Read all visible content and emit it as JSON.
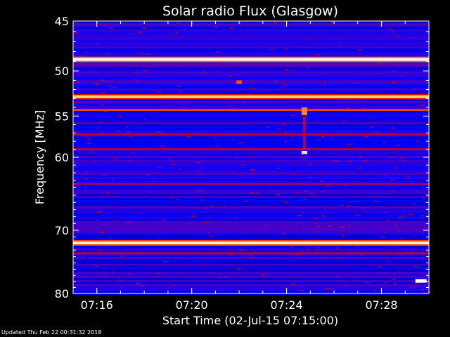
{
  "chart_data": {
    "type": "heatmap",
    "title": "Solar radio Flux (Glasgow)",
    "xlabel": "Start Time (02-Jul-15 07:15:00)",
    "ylabel": "Frequency [MHz]",
    "start_time": "07:15:00",
    "xlim": [
      "07:15:00",
      "07:30:00"
    ],
    "ylim": [
      45,
      80
    ],
    "x_ticks": [
      "07:16",
      "07:20",
      "07:24",
      "07:28"
    ],
    "y_ticks": [
      45,
      50,
      55,
      60,
      70,
      80
    ],
    "y_scale": "log",
    "colormap": [
      "#000078",
      "#0000ff",
      "#7a00a0",
      "#d80000",
      "#ff5a00",
      "#ffe080",
      "#ffffff"
    ],
    "horizontal_features": [
      {
        "freq_mhz": 45.4,
        "level": 0.28
      },
      {
        "freq_mhz": 46.3,
        "level": 0.22
      },
      {
        "freq_mhz": 48.8,
        "level": 0.98
      },
      {
        "freq_mhz": 49.4,
        "level": 0.3
      },
      {
        "freq_mhz": 50.8,
        "level": 0.18
      },
      {
        "freq_mhz": 52.8,
        "level": 0.82
      },
      {
        "freq_mhz": 54.3,
        "level": 0.62
      },
      {
        "freq_mhz": 57.2,
        "level": 0.44
      },
      {
        "freq_mhz": 59.0,
        "level": 0.46
      },
      {
        "freq_mhz": 63.5,
        "level": 0.4
      },
      {
        "freq_mhz": 67.0,
        "level": 0.2
      },
      {
        "freq_mhz": 71.9,
        "level": 0.92
      },
      {
        "freq_mhz": 73.5,
        "level": 0.45
      },
      {
        "freq_mhz": 75.0,
        "level": 0.1
      }
    ],
    "bursts": [
      {
        "time": "07:24:45",
        "freq_mhz": [
          54.0,
          54.9
        ],
        "level": 0.72
      },
      {
        "time": "07:24:45",
        "freq_mhz": [
          59.2,
          59.6
        ],
        "level": 0.86
      },
      {
        "time": "07:24:45",
        "freq_mhz": [
          55.0,
          59.0
        ],
        "level": 0.4
      },
      {
        "time": "07:22:00",
        "freq_mhz": [
          51.0,
          51.4
        ],
        "level": 0.65
      },
      {
        "time": "07:29:40",
        "freq_mhz": [
          77.6,
          78.2
        ],
        "level": 1.0
      }
    ]
  },
  "footer": {
    "updated": "Updated Thu Feb 22 00:31:32 2018"
  }
}
